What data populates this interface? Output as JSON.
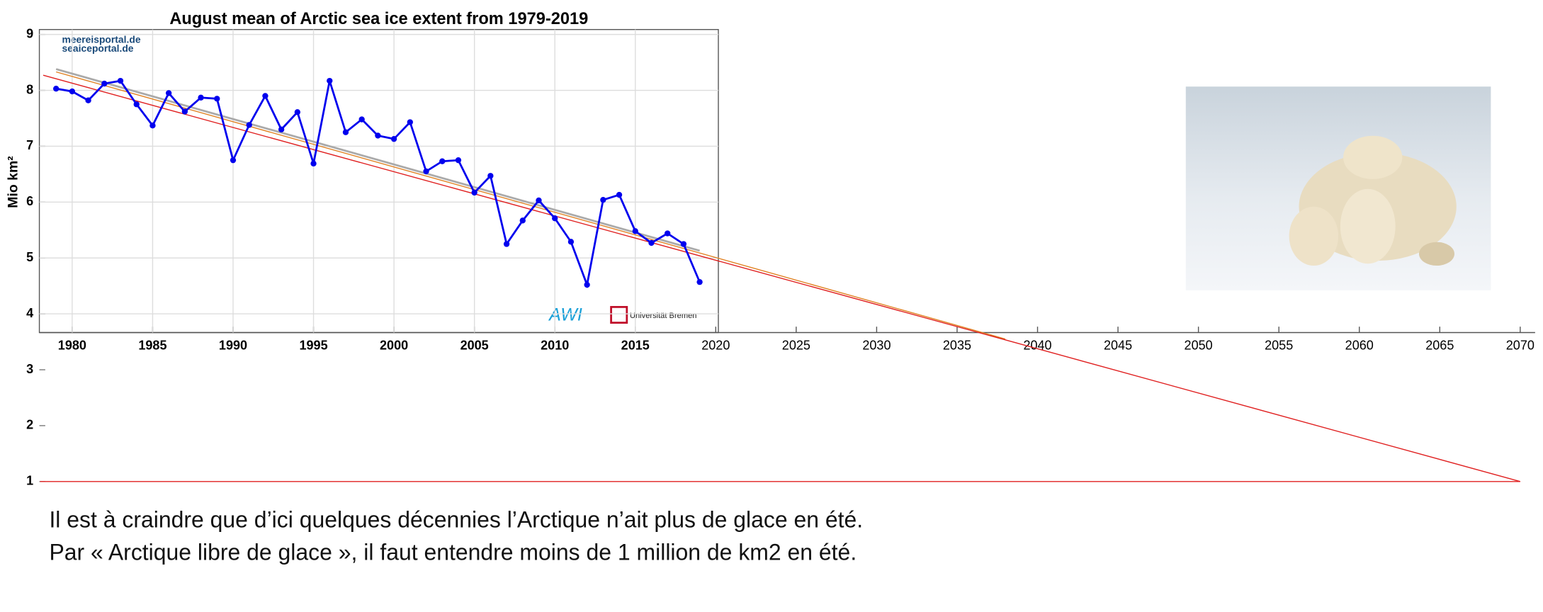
{
  "chart_data": {
    "type": "line",
    "title": "August mean of Arctic sea ice extent from 1979-2019",
    "y_label": "Mio km²",
    "logos": [
      "meereisportal.de",
      "seaiceportal.de",
      "AWI",
      "Universität Bremen"
    ],
    "x": [
      1979,
      1980,
      1981,
      1982,
      1983,
      1984,
      1985,
      1986,
      1987,
      1988,
      1989,
      1990,
      1991,
      1992,
      1993,
      1994,
      1995,
      1996,
      1997,
      1998,
      1999,
      2000,
      2001,
      2002,
      2003,
      2004,
      2005,
      2006,
      2007,
      2008,
      2009,
      2010,
      2011,
      2012,
      2013,
      2014,
      2015,
      2016,
      2017,
      2018,
      2019
    ],
    "series": [
      {
        "name": "August mean",
        "color": "#0000ee",
        "values": [
          8.03,
          7.98,
          7.82,
          8.12,
          8.17,
          7.75,
          7.37,
          7.95,
          7.62,
          7.87,
          7.85,
          6.75,
          7.38,
          7.9,
          7.3,
          7.61,
          6.69,
          8.17,
          7.25,
          7.48,
          7.19,
          7.13,
          7.43,
          6.55,
          6.73,
          6.75,
          6.17,
          6.47,
          5.25,
          5.67,
          6.03,
          5.71,
          5.29,
          4.52,
          6.04,
          6.13,
          5.48,
          5.27,
          5.44,
          5.25,
          4.57
        ]
      }
    ],
    "trend_lines": [
      {
        "color": "#aaaaaa",
        "x": [
          1979,
          2019
        ],
        "values": [
          8.38,
          5.13
        ]
      },
      {
        "color": "#e08020",
        "x": [
          1979,
          2038
        ],
        "values": [
          8.33,
          3.55
        ]
      },
      {
        "color": "#e02020",
        "x": [
          1978.2,
          2070
        ],
        "values": [
          8.27,
          1
        ]
      },
      {
        "color": "#e02020",
        "x": [
          1978,
          2070
        ],
        "values": [
          1,
          1
        ]
      }
    ],
    "xlim": [
      1977,
      2071
    ],
    "xticks": [
      1980,
      1985,
      1990,
      1995,
      2000,
      2005,
      2010,
      2015,
      2020,
      2025,
      2030,
      2035,
      2040,
      2045,
      2050,
      2055,
      2060,
      2065,
      2070
    ],
    "ylim": [
      1,
      9
    ],
    "yticks": [
      1,
      2,
      3,
      4,
      5,
      6,
      7,
      8,
      9
    ],
    "grid": true
  },
  "caption": [
    "Il est à craindre que d’ici quelques décennies l’Arctique n’ait plus de glace en été.",
    "Par « Arctique libre de glace », il faut entendre moins de 1 million de km2 en été."
  ]
}
